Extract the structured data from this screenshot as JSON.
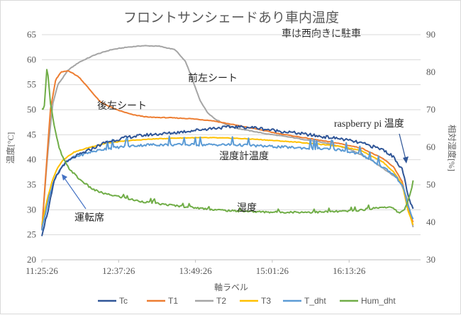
{
  "chart_data": {
    "type": "line",
    "title": "フロントサンシェードあり車内温度",
    "subtitle": "車は西向きに駐車",
    "xlabel": "軸ラベル",
    "ylabel": "温度[°C]",
    "y2label": "相対湿度[%]",
    "x_ticks": [
      "11:25:26",
      "12:37:26",
      "13:49:26",
      "15:01:26",
      "16:13:26"
    ],
    "x_range_minutes": [
      0,
      355
    ],
    "ylim": [
      20,
      65
    ],
    "y_ticks": [
      20,
      25,
      30,
      35,
      40,
      45,
      50,
      55,
      60,
      65
    ],
    "y2lim": [
      30,
      90
    ],
    "y2_ticks": [
      30,
      40,
      50,
      60,
      70,
      80,
      90
    ],
    "legend_position": "bottom",
    "colors": {
      "Tc": "#2f5597",
      "T1": "#ed7d31",
      "T2": "#a5a5a5",
      "T3": "#ffc000",
      "T_dht": "#5b9bd5",
      "Hum_dht": "#70ad47"
    },
    "series": [
      {
        "name": "Tc",
        "axis": "left",
        "x": [
          0,
          6,
          12,
          20,
          30,
          45,
          60,
          80,
          100,
          120,
          140,
          160,
          180,
          200,
          220,
          240,
          260,
          280,
          300,
          320,
          330,
          338,
          343,
          348
        ],
        "y": [
          25,
          30,
          36,
          39,
          40.5,
          42,
          43.5,
          44.5,
          45,
          45.3,
          45.8,
          46.3,
          46.6,
          46.4,
          45.8,
          45.3,
          44.7,
          44.2,
          43.3,
          42,
          40.5,
          38,
          33,
          30
        ]
      },
      {
        "name": "T1",
        "axis": "left",
        "x": [
          0,
          4,
          8,
          13,
          18,
          25,
          35,
          45,
          55,
          70,
          85,
          100,
          120,
          140,
          160,
          180,
          200,
          220,
          240,
          260,
          280,
          300,
          320,
          330,
          338,
          343,
          348
        ],
        "y": [
          26,
          38,
          50,
          56,
          57.5,
          57.8,
          56.5,
          54,
          51.5,
          50,
          49,
          48.5,
          48.4,
          48.2,
          47.8,
          47,
          46.2,
          45.3,
          44.6,
          43.9,
          43.2,
          42.3,
          40.2,
          38.5,
          35.5,
          30,
          27.5
        ]
      },
      {
        "name": "T2",
        "axis": "left",
        "x": [
          0,
          5,
          10,
          15,
          20,
          25,
          35,
          50,
          65,
          80,
          95,
          110,
          125,
          135,
          142,
          148,
          155,
          162,
          170,
          180,
          195,
          210,
          230,
          250,
          270,
          290,
          310,
          325,
          335,
          342,
          348
        ],
        "y": [
          26,
          40,
          51,
          55,
          56.5,
          58,
          59.5,
          61,
          62,
          62.5,
          62.8,
          62.7,
          62,
          59.5,
          55.5,
          52,
          49.5,
          48.2,
          47.3,
          46.4,
          45.8,
          45.2,
          44.6,
          43.9,
          43.2,
          42,
          39.8,
          37.5,
          36,
          32.5,
          26.5
        ]
      },
      {
        "name": "T3",
        "axis": "left",
        "x": [
          0,
          5,
          10,
          15,
          20,
          30,
          45,
          60,
          80,
          100,
          120,
          140,
          160,
          180,
          200,
          220,
          240,
          260,
          280,
          300,
          320,
          330,
          338,
          343,
          348
        ],
        "y": [
          27,
          32,
          36,
          38.5,
          40,
          41.5,
          42.5,
          43.3,
          43.8,
          44.1,
          44.3,
          44.4,
          44.4,
          44.3,
          44.1,
          43.8,
          43.5,
          43.1,
          42.7,
          41.8,
          39.5,
          37.5,
          35,
          30,
          27
        ]
      },
      {
        "name": "T_dht",
        "axis": "left",
        "x": [
          0,
          5,
          10,
          15,
          20,
          30,
          45,
          60,
          80,
          100,
          120,
          140,
          160,
          180,
          200,
          220,
          240,
          260,
          280,
          300,
          320,
          330,
          338,
          343,
          348
        ],
        "y": [
          26,
          31,
          35,
          37.5,
          39,
          40.5,
          41.5,
          42.2,
          42.7,
          43,
          43,
          43,
          43,
          43,
          42.8,
          42.6,
          42.4,
          42.2,
          42,
          41,
          38.5,
          37,
          35,
          31,
          28
        ]
      },
      {
        "name": "Hum_dht",
        "axis": "right",
        "x": [
          0,
          2,
          5,
          8,
          12,
          16,
          20,
          25,
          30,
          35,
          40,
          45,
          50,
          55,
          60,
          70,
          80,
          90,
          100,
          110,
          120,
          130,
          140,
          150,
          160,
          170,
          180,
          190,
          200,
          220,
          240,
          260,
          280,
          290,
          300,
          310,
          320,
          328,
          335,
          340,
          345,
          348
        ],
        "y": [
          70,
          70,
          82,
          72,
          65,
          60,
          57,
          54.5,
          53,
          51.5,
          50.5,
          49.3,
          48.5,
          48,
          47.5,
          47,
          46.3,
          45.7,
          45.3,
          44.9,
          44.6,
          44.3,
          44,
          43.7,
          43.4,
          43.2,
          43.0,
          43.0,
          42.8,
          42.7,
          42.7,
          42.7,
          42.9,
          43.0,
          43.3,
          43.7,
          44.1,
          43.9,
          42.5,
          43.5,
          47,
          51
        ]
      }
    ],
    "annotations": [
      {
        "text": "前左シート",
        "target": "T2"
      },
      {
        "text": "後左シート",
        "target": "T1"
      },
      {
        "text": "raspberry pi 温度",
        "target": "Tc"
      },
      {
        "text": "湿度計温度",
        "target": "T_dht"
      },
      {
        "text": "運転席",
        "target": "T3"
      },
      {
        "text": "湿度",
        "target": "Hum_dht"
      }
    ]
  }
}
